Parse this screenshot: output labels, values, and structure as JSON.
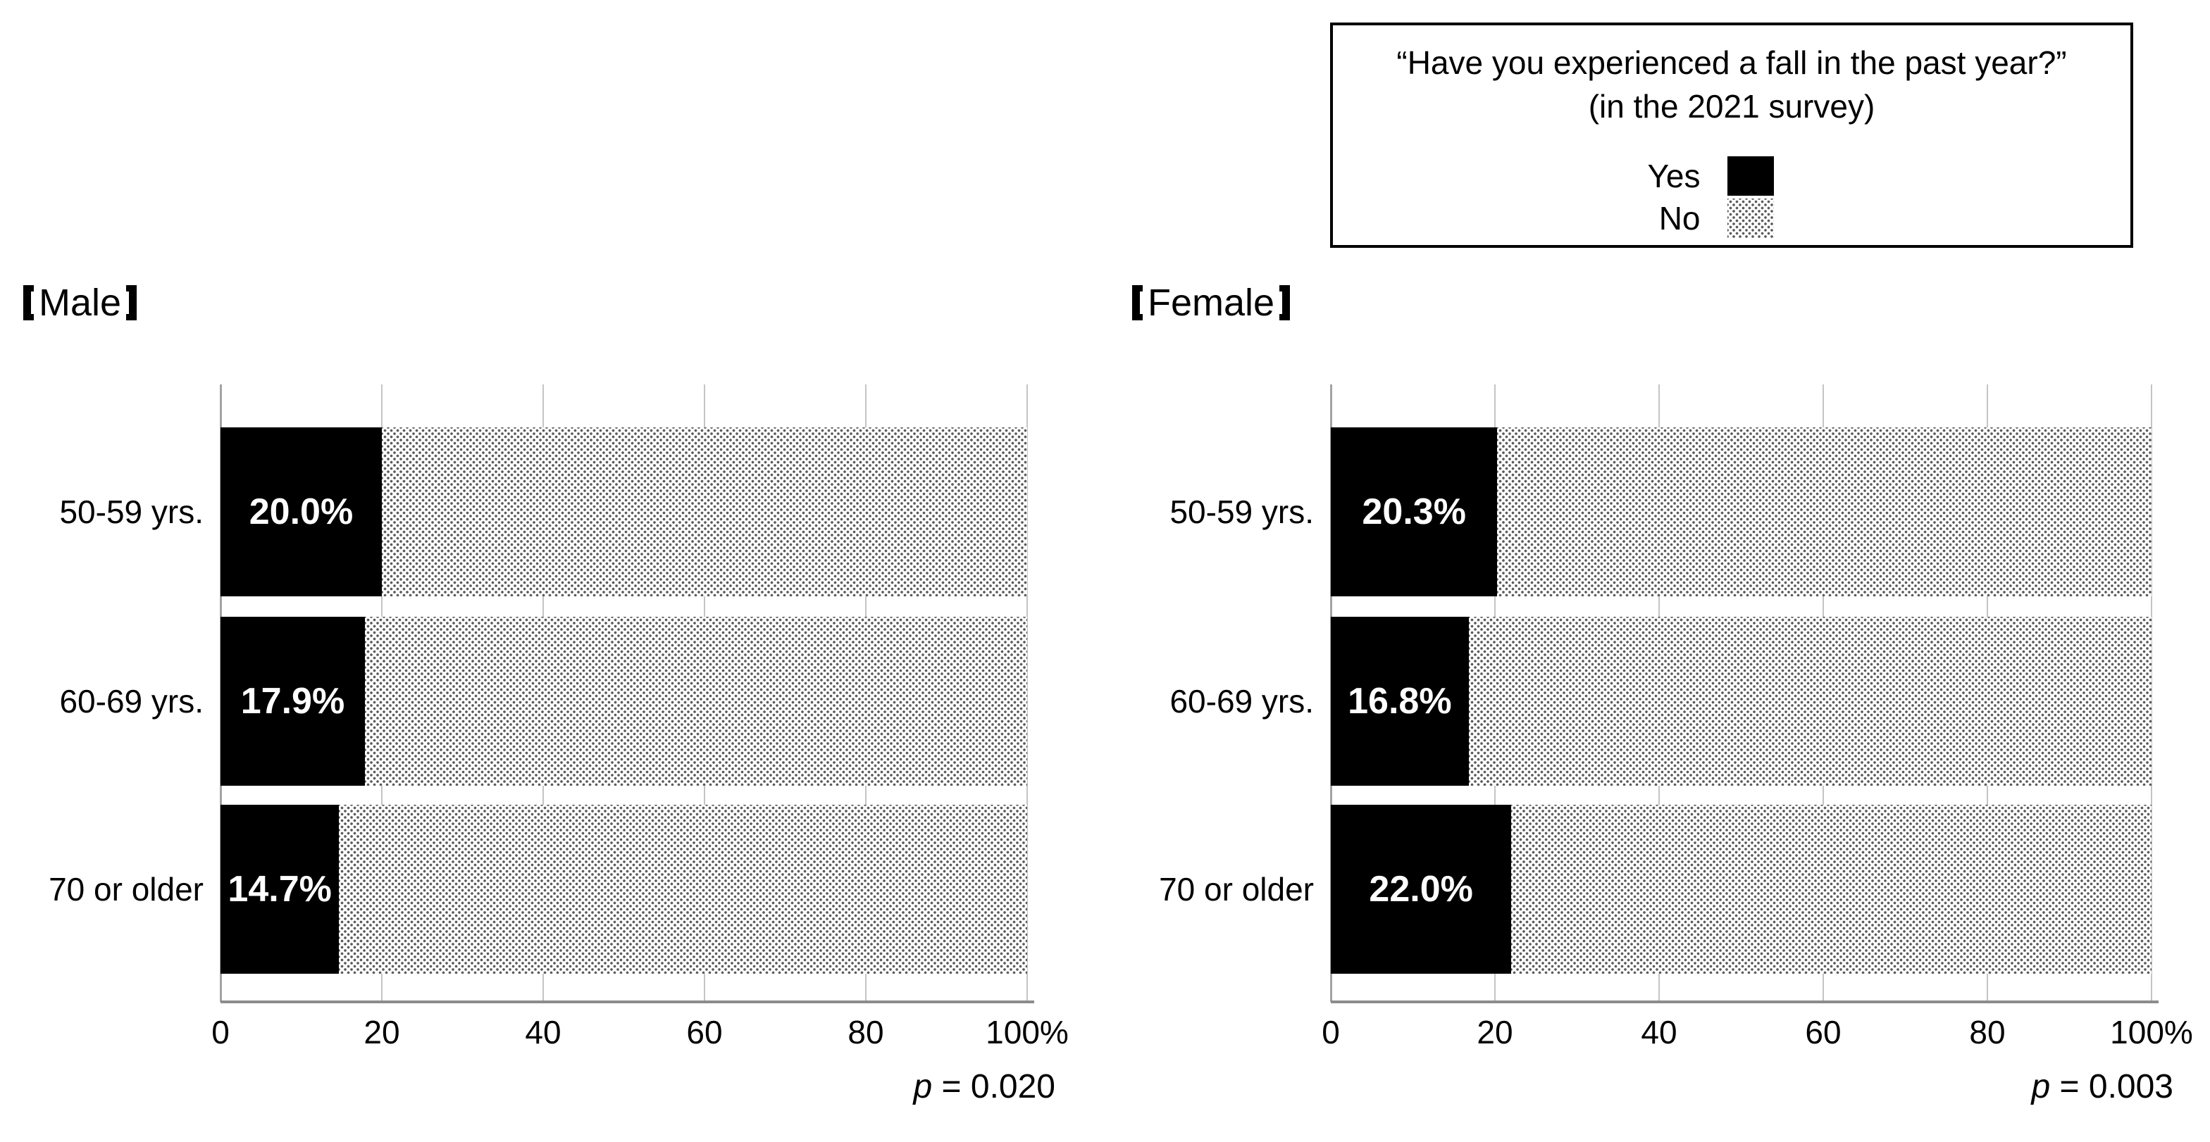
{
  "figure": {
    "legend": {
      "title_line1": "“Have you experienced a fall in the past year?”",
      "title_line2": "(in the 2021 survey)",
      "items": [
        {
          "label": "Yes",
          "swatch": "black-solid"
        },
        {
          "label": "No",
          "swatch": "dotted-pattern"
        }
      ]
    },
    "panels": [
      {
        "title": "Male",
        "bracket_left": "【",
        "bracket_right": "】",
        "p_symbol": "p",
        "p_rest": " = 0.020"
      },
      {
        "title": "Female",
        "bracket_left": "【",
        "bracket_right": "】",
        "p_symbol": "p",
        "p_rest": " = 0.003"
      }
    ],
    "colors": {
      "yes_fill": "#000000",
      "value_text": "#ffffff",
      "gridline": "#c4c4c4",
      "axis_line": "#8c8c8c",
      "pattern_dot": "#5a5a5a",
      "legend_border": "#000000"
    }
  },
  "chart_data": [
    {
      "type": "bar",
      "orientation": "horizontal",
      "stacked": true,
      "title": "【Male】",
      "categories": [
        "50-59 yrs.",
        "60-69 yrs.",
        "70 or older"
      ],
      "series": [
        {
          "name": "Yes",
          "values": [
            20.0,
            17.9,
            14.7
          ]
        },
        {
          "name": "No",
          "values": [
            80.0,
            82.1,
            85.3
          ]
        }
      ],
      "data_labels": [
        "20.0%",
        "17.9%",
        "14.7%"
      ],
      "x_tick_labels": [
        "0",
        "20",
        "40",
        "60",
        "80",
        "100%"
      ],
      "xlim": [
        0,
        100
      ],
      "grid": true,
      "legend_position": "top-right-shared",
      "annotation": "p = 0.020"
    },
    {
      "type": "bar",
      "orientation": "horizontal",
      "stacked": true,
      "title": "【Female】",
      "categories": [
        "50-59 yrs.",
        "60-69 yrs.",
        "70 or older"
      ],
      "series": [
        {
          "name": "Yes",
          "values": [
            20.3,
            16.8,
            22.0
          ]
        },
        {
          "name": "No",
          "values": [
            79.7,
            83.2,
            78.0
          ]
        }
      ],
      "data_labels": [
        "20.3%",
        "16.8%",
        "22.0%"
      ],
      "x_tick_labels": [
        "0",
        "20",
        "40",
        "60",
        "80",
        "100%"
      ],
      "xlim": [
        0,
        100
      ],
      "grid": true,
      "legend_position": "top-right-shared",
      "annotation": "p = 0.003"
    }
  ]
}
